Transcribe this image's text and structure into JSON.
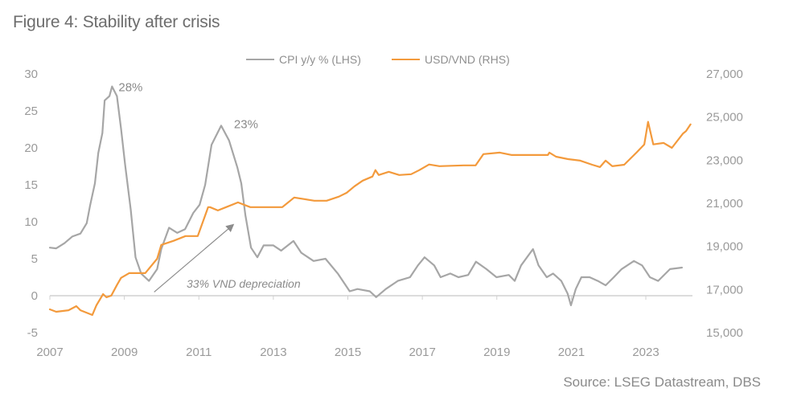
{
  "figure": {
    "title": "Figure 4: Stability after crisis",
    "source": "Source: LSEG Datastream, DBS"
  },
  "colors": {
    "cpi": "#a6a6a6",
    "usdvnd": "#f39a3c",
    "axis": "#d0d0d0",
    "arrow": "#8c8c8c"
  },
  "chart_data": {
    "type": "line",
    "title": "Figure 4: Stability after crisis",
    "xlabel": "",
    "ylabel_left": "CPI y/y %",
    "ylabel_right": "USD/VND",
    "xlim": [
      2007.0,
      2024.2
    ],
    "ylim_left": [
      -5,
      30
    ],
    "ylim_right": [
      15000,
      27000
    ],
    "x_ticks": [
      "2007",
      "2009",
      "2011",
      "2013",
      "2015",
      "2017",
      "2019",
      "2021",
      "2023"
    ],
    "x_tick_values": [
      2007,
      2009,
      2011,
      2013,
      2015,
      2017,
      2019,
      2021,
      2023
    ],
    "y_left_ticks": [
      "30",
      "25",
      "20",
      "15",
      "10",
      "5",
      "0",
      "-5"
    ],
    "y_left_tick_values": [
      30,
      25,
      20,
      15,
      10,
      5,
      0,
      -5
    ],
    "y_right_ticks": [
      "27,000",
      "25,000",
      "23,000",
      "21,000",
      "19,000",
      "17,000",
      "15,000"
    ],
    "y_right_tick_values": [
      27000,
      25000,
      23000,
      21000,
      19000,
      17000,
      15000
    ],
    "grid": false,
    "legend_position": "top-center",
    "legend": [
      "CPI y/y % (LHS)",
      "USD/VND (RHS)"
    ],
    "series": [
      {
        "name": "CPI y/y % (LHS)",
        "axis": "left",
        "x": [
          2007.0,
          2007.17,
          2007.39,
          2007.6,
          2007.82,
          2007.99,
          2008.08,
          2008.21,
          2008.3,
          2008.41,
          2008.47,
          2008.6,
          2008.67,
          2008.8,
          2008.91,
          2009.02,
          2009.17,
          2009.3,
          2009.45,
          2009.66,
          2009.88,
          2009.99,
          2010.2,
          2010.42,
          2010.63,
          2010.85,
          2011.02,
          2011.17,
          2011.34,
          2011.6,
          2011.81,
          2012.03,
          2012.14,
          2012.25,
          2012.4,
          2012.57,
          2012.74,
          2013.0,
          2013.21,
          2013.54,
          2013.75,
          2014.08,
          2014.4,
          2014.73,
          2015.05,
          2015.26,
          2015.59,
          2015.76,
          2016.02,
          2016.34,
          2016.67,
          2016.88,
          2017.06,
          2017.32,
          2017.49,
          2017.75,
          2017.97,
          2018.23,
          2018.44,
          2018.72,
          2018.99,
          2019.32,
          2019.48,
          2019.65,
          2019.97,
          2020.12,
          2020.34,
          2020.51,
          2020.73,
          2020.9,
          2020.99,
          2021.12,
          2021.27,
          2021.49,
          2021.71,
          2021.92,
          2022.14,
          2022.35,
          2022.68,
          2022.9,
          2023.11,
          2023.33,
          2023.65,
          2023.97
        ],
        "values": [
          6.5,
          6.4,
          7.1,
          8.0,
          8.4,
          9.8,
          12.2,
          15.2,
          19.3,
          22.0,
          26.4,
          27.0,
          28.3,
          27.0,
          22.6,
          17.7,
          11.7,
          5.2,
          3.0,
          2.0,
          3.6,
          6.3,
          9.2,
          8.5,
          9.0,
          11.2,
          12.3,
          15.0,
          20.4,
          23.0,
          21.0,
          17.4,
          15.2,
          10.9,
          6.5,
          5.2,
          6.8,
          6.8,
          6.1,
          7.4,
          5.8,
          4.7,
          5.0,
          3.0,
          0.6,
          0.9,
          0.6,
          -0.2,
          0.9,
          2.0,
          2.5,
          4.1,
          5.2,
          4.1,
          2.5,
          3.0,
          2.5,
          2.8,
          4.6,
          3.6,
          2.5,
          2.8,
          2.0,
          4.1,
          6.3,
          4.1,
          2.5,
          3.0,
          2.0,
          0.3,
          -1.3,
          0.9,
          2.5,
          2.5,
          2.0,
          1.4,
          2.5,
          3.6,
          4.7,
          4.1,
          2.5,
          2.0,
          3.6,
          3.8
        ]
      },
      {
        "name": "USD/VND (RHS)",
        "axis": "right",
        "x": [
          2007.0,
          2007.17,
          2007.5,
          2007.71,
          2007.82,
          2008.14,
          2008.25,
          2008.43,
          2008.52,
          2008.65,
          2008.8,
          2008.91,
          2009.13,
          2009.56,
          2009.88,
          2009.99,
          2010.32,
          2010.64,
          2010.97,
          2011.25,
          2011.3,
          2011.51,
          2011.73,
          2012.05,
          2012.38,
          2012.81,
          2013.24,
          2013.56,
          2014.1,
          2014.43,
          2014.76,
          2014.97,
          2015.18,
          2015.4,
          2015.66,
          2015.74,
          2015.83,
          2016.1,
          2016.38,
          2016.7,
          2016.92,
          2017.18,
          2017.46,
          2018.11,
          2018.43,
          2018.64,
          2019.08,
          2019.4,
          2019.83,
          2020.37,
          2020.41,
          2020.59,
          2020.91,
          2021.24,
          2021.56,
          2021.77,
          2021.92,
          2022.1,
          2022.42,
          2022.75,
          2022.96,
          2023.06,
          2023.2,
          2023.48,
          2023.7,
          2024.0,
          2024.08,
          2024.2
        ],
        "values": [
          16080,
          15970,
          16040,
          16230,
          16040,
          15820,
          16270,
          16790,
          16640,
          16720,
          17210,
          17540,
          17760,
          17760,
          18430,
          19070,
          19260,
          19480,
          19480,
          20820,
          20820,
          20670,
          20820,
          21040,
          20820,
          20820,
          20820,
          21270,
          21120,
          21120,
          21310,
          21490,
          21790,
          22050,
          22240,
          22540,
          22310,
          22460,
          22310,
          22350,
          22540,
          22800,
          22720,
          22760,
          22760,
          23280,
          23350,
          23240,
          23240,
          23240,
          23350,
          23160,
          23050,
          22980,
          22790,
          22680,
          22980,
          22720,
          22790,
          23350,
          23730,
          24780,
          23730,
          23800,
          23570,
          24240,
          24350,
          24660
        ]
      }
    ],
    "annotations": [
      {
        "text": "28%",
        "x": 2008.8,
        "y": 28,
        "axis": "left"
      },
      {
        "text": "23%",
        "x": 2011.9,
        "y": 23,
        "axis": "left"
      },
      {
        "text": "33% VND depreciation",
        "type": "arrow",
        "from": [
          2009.8,
          0.5
        ],
        "to": [
          2011.9,
          9.5
        ],
        "axis": "left"
      }
    ]
  }
}
